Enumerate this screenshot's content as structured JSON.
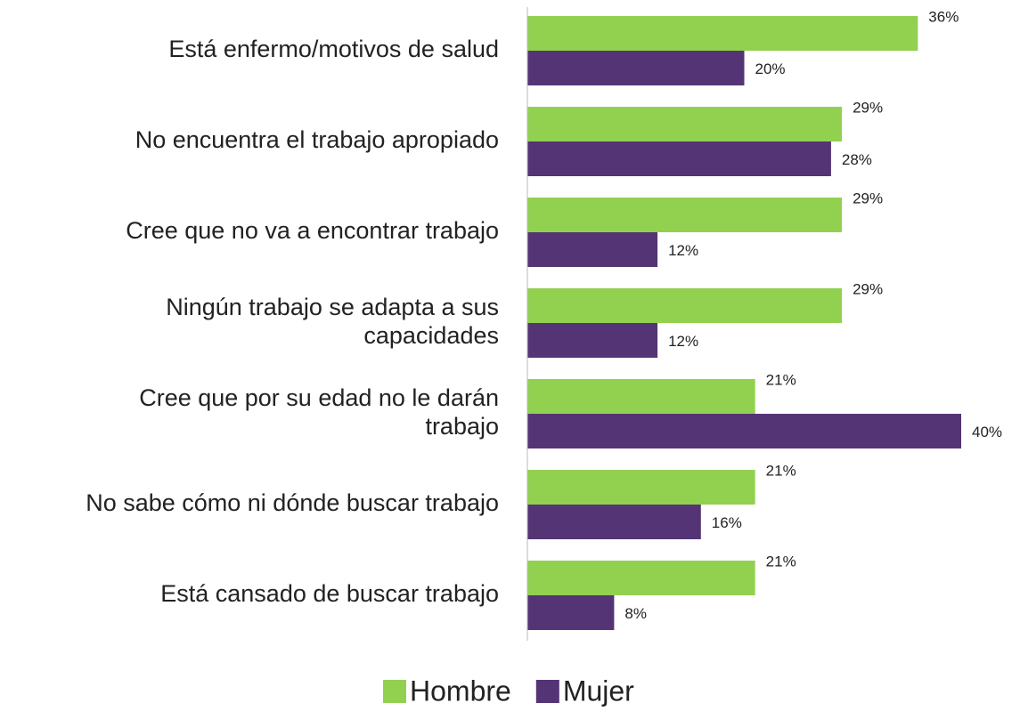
{
  "chart_data": {
    "type": "bar",
    "orientation": "horizontal",
    "categories": [
      "Está enfermo/motivos de salud",
      "No encuentra el trabajo apropiado",
      "Cree que no va a encontrar trabajo",
      "Ningún trabajo se adapta a sus capacidades",
      "Cree que por su edad no le darán trabajo",
      "No sabe cómo ni dónde buscar trabajo",
      "Está cansado de buscar trabajo"
    ],
    "series": [
      {
        "name": "Hombre",
        "color": "#92d050",
        "values": [
          36,
          29,
          29,
          29,
          21,
          21,
          21
        ],
        "value_labels": [
          "36%",
          "29%",
          "29%",
          "29%",
          "21%",
          "21%",
          "21%"
        ]
      },
      {
        "name": "Mujer",
        "color": "#543474",
        "values": [
          20,
          28,
          12,
          12,
          40,
          16,
          8
        ],
        "value_labels": [
          "20%",
          "28%",
          "12%",
          "12%",
          "40%",
          "16%",
          "8%"
        ]
      }
    ],
    "xlim": [
      0,
      40
    ],
    "legend": "bottom"
  }
}
